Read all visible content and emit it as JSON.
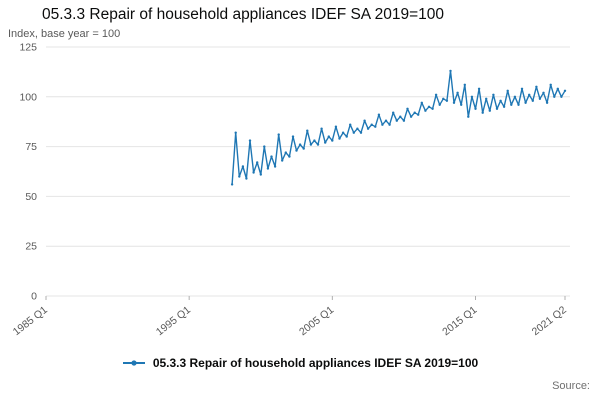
{
  "header": {
    "title": "05.3.3 Repair of household appliances IDEF SA 2019=100",
    "axis_unit": "Index, base year = 100"
  },
  "legend": {
    "label": "05.3.3 Repair of household appliances IDEF SA 2019=100"
  },
  "footer": {
    "source": "Source:"
  },
  "colors": {
    "accent": "#1f77b4",
    "grid": "#e4e4e4",
    "tick_text": "#595959"
  },
  "chart_data": {
    "type": "line",
    "title": "05.3.3 Repair of household appliances IDEF SA 2019=100",
    "xlabel": "",
    "ylabel": "Index, base year = 100",
    "ylim": [
      0,
      125
    ],
    "yticks": [
      0,
      25,
      50,
      75,
      100,
      125
    ],
    "xlim": [
      1985.0,
      2021.6
    ],
    "xticks": [
      {
        "t": 1985.0,
        "label": "1985 Q1"
      },
      {
        "t": 1995.0,
        "label": "1995 Q1"
      },
      {
        "t": 2005.0,
        "label": "2005 Q1"
      },
      {
        "t": 2015.0,
        "label": "2015 Q1"
      },
      {
        "t": 2021.25,
        "label": "2021 Q2"
      }
    ],
    "grid": true,
    "legend_position": "bottom",
    "series": [
      {
        "name": "05.3.3 Repair of household appliances IDEF SA 2019=100",
        "color": "#1f77b4",
        "marker": "circle",
        "points": [
          [
            1998.0,
            56
          ],
          [
            1998.25,
            82
          ],
          [
            1998.5,
            60
          ],
          [
            1998.75,
            65
          ],
          [
            1999.0,
            59
          ],
          [
            1999.25,
            78
          ],
          [
            1999.5,
            62
          ],
          [
            1999.75,
            67
          ],
          [
            2000.0,
            61
          ],
          [
            2000.25,
            75
          ],
          [
            2000.5,
            64
          ],
          [
            2000.75,
            70
          ],
          [
            2001.0,
            65
          ],
          [
            2001.25,
            81
          ],
          [
            2001.5,
            68
          ],
          [
            2001.75,
            72
          ],
          [
            2002.0,
            70
          ],
          [
            2002.25,
            80
          ],
          [
            2002.5,
            73
          ],
          [
            2002.75,
            76
          ],
          [
            2003.0,
            74
          ],
          [
            2003.25,
            83
          ],
          [
            2003.5,
            76
          ],
          [
            2003.75,
            78
          ],
          [
            2004.0,
            76
          ],
          [
            2004.25,
            84
          ],
          [
            2004.5,
            77
          ],
          [
            2004.75,
            80
          ],
          [
            2005.0,
            78
          ],
          [
            2005.25,
            85
          ],
          [
            2005.5,
            79
          ],
          [
            2005.75,
            82
          ],
          [
            2006.0,
            80
          ],
          [
            2006.25,
            86
          ],
          [
            2006.5,
            82
          ],
          [
            2006.75,
            84
          ],
          [
            2007.0,
            82
          ],
          [
            2007.25,
            88
          ],
          [
            2007.5,
            84
          ],
          [
            2007.75,
            86
          ],
          [
            2008.0,
            85
          ],
          [
            2008.25,
            91
          ],
          [
            2008.5,
            86
          ],
          [
            2008.75,
            88
          ],
          [
            2009.0,
            86
          ],
          [
            2009.25,
            92
          ],
          [
            2009.5,
            88
          ],
          [
            2009.75,
            90
          ],
          [
            2010.0,
            88
          ],
          [
            2010.25,
            94
          ],
          [
            2010.5,
            90
          ],
          [
            2010.75,
            92
          ],
          [
            2011.0,
            91
          ],
          [
            2011.25,
            97
          ],
          [
            2011.5,
            93
          ],
          [
            2011.75,
            95
          ],
          [
            2012.0,
            94
          ],
          [
            2012.25,
            101
          ],
          [
            2012.5,
            96
          ],
          [
            2012.75,
            99
          ],
          [
            2013.0,
            98
          ],
          [
            2013.25,
            113
          ],
          [
            2013.5,
            97
          ],
          [
            2013.75,
            102
          ],
          [
            2014.0,
            96
          ],
          [
            2014.25,
            106
          ],
          [
            2014.5,
            90
          ],
          [
            2014.75,
            100
          ],
          [
            2015.0,
            94
          ],
          [
            2015.25,
            104
          ],
          [
            2015.5,
            92
          ],
          [
            2015.75,
            99
          ],
          [
            2016.0,
            93
          ],
          [
            2016.25,
            101
          ],
          [
            2016.5,
            94
          ],
          [
            2016.75,
            98
          ],
          [
            2017.0,
            95
          ],
          [
            2017.25,
            103
          ],
          [
            2017.5,
            96
          ],
          [
            2017.75,
            100
          ],
          [
            2018.0,
            96
          ],
          [
            2018.25,
            104
          ],
          [
            2018.5,
            97
          ],
          [
            2018.75,
            101
          ],
          [
            2019.0,
            98
          ],
          [
            2019.25,
            105
          ],
          [
            2019.5,
            99
          ],
          [
            2019.75,
            102
          ],
          [
            2020.0,
            97
          ],
          [
            2020.25,
            106
          ],
          [
            2020.5,
            100
          ],
          [
            2020.75,
            104
          ],
          [
            2021.0,
            100
          ],
          [
            2021.25,
            103
          ]
        ]
      }
    ]
  }
}
